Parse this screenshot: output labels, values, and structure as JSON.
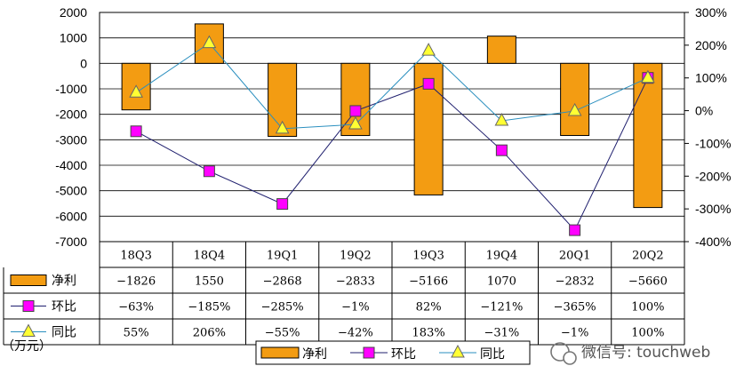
{
  "chart_data": {
    "type": "bar",
    "categories": [
      "18Q3",
      "18Q4",
      "19Q1",
      "19Q2",
      "19Q3",
      "19Q4",
      "20Q1",
      "20Q2"
    ],
    "series": [
      {
        "name": "净利",
        "kind": "bar",
        "axis": "left",
        "color": "#f39c12",
        "values": [
          -1826,
          1550,
          -2868,
          -2833,
          -5166,
          1070,
          -2832,
          -5660
        ],
        "labels": [
          "−1826",
          "1550",
          "−2868",
          "−2833",
          "−5166",
          "1070",
          "−2832",
          "−5660"
        ]
      },
      {
        "name": "环比",
        "kind": "line",
        "axis": "right",
        "color": "#1f1f6e",
        "marker": "square",
        "marker_color": "#ff00ff",
        "values": [
          -63,
          -185,
          -285,
          -1,
          82,
          -121,
          -365,
          100
        ],
        "labels": [
          "−63%",
          "−185%",
          "−285%",
          "−1%",
          "82%",
          "−121%",
          "−365%",
          "100%"
        ]
      },
      {
        "name": "同比",
        "kind": "line",
        "axis": "right",
        "color": "#2a8fbf",
        "marker": "triangle",
        "marker_color": "#ffff33",
        "values": [
          55,
          206,
          -55,
          -42,
          183,
          -31,
          -1,
          100
        ],
        "labels": [
          "55%",
          "206%",
          "−55%",
          "−42%",
          "183%",
          "−31%",
          "−1%",
          "100%"
        ]
      }
    ],
    "y_left": {
      "ylim": [
        -7000,
        2000
      ],
      "ticks": [
        2000,
        1000,
        0,
        -1000,
        -2000,
        -3000,
        -4000,
        -5000,
        -6000,
        -7000
      ],
      "tick_labels": [
        "2000",
        "1000",
        "0",
        "-1000",
        "-2000",
        "-3000",
        "-4000",
        "-5000",
        "-6000",
        "-7000"
      ]
    },
    "y_right": {
      "ylim": [
        -400,
        300
      ],
      "ticks": [
        300,
        200,
        100,
        0,
        -100,
        -200,
        -300,
        -400
      ],
      "tick_labels": [
        "300%",
        "200%",
        "100%",
        "0%",
        "-100%",
        "-200%",
        "-300%",
        "-400%"
      ]
    },
    "grid": true,
    "data_table": true,
    "legend_position": "bottom-center",
    "unit_note": "（万元）"
  },
  "watermark": "微信号: touchweb"
}
